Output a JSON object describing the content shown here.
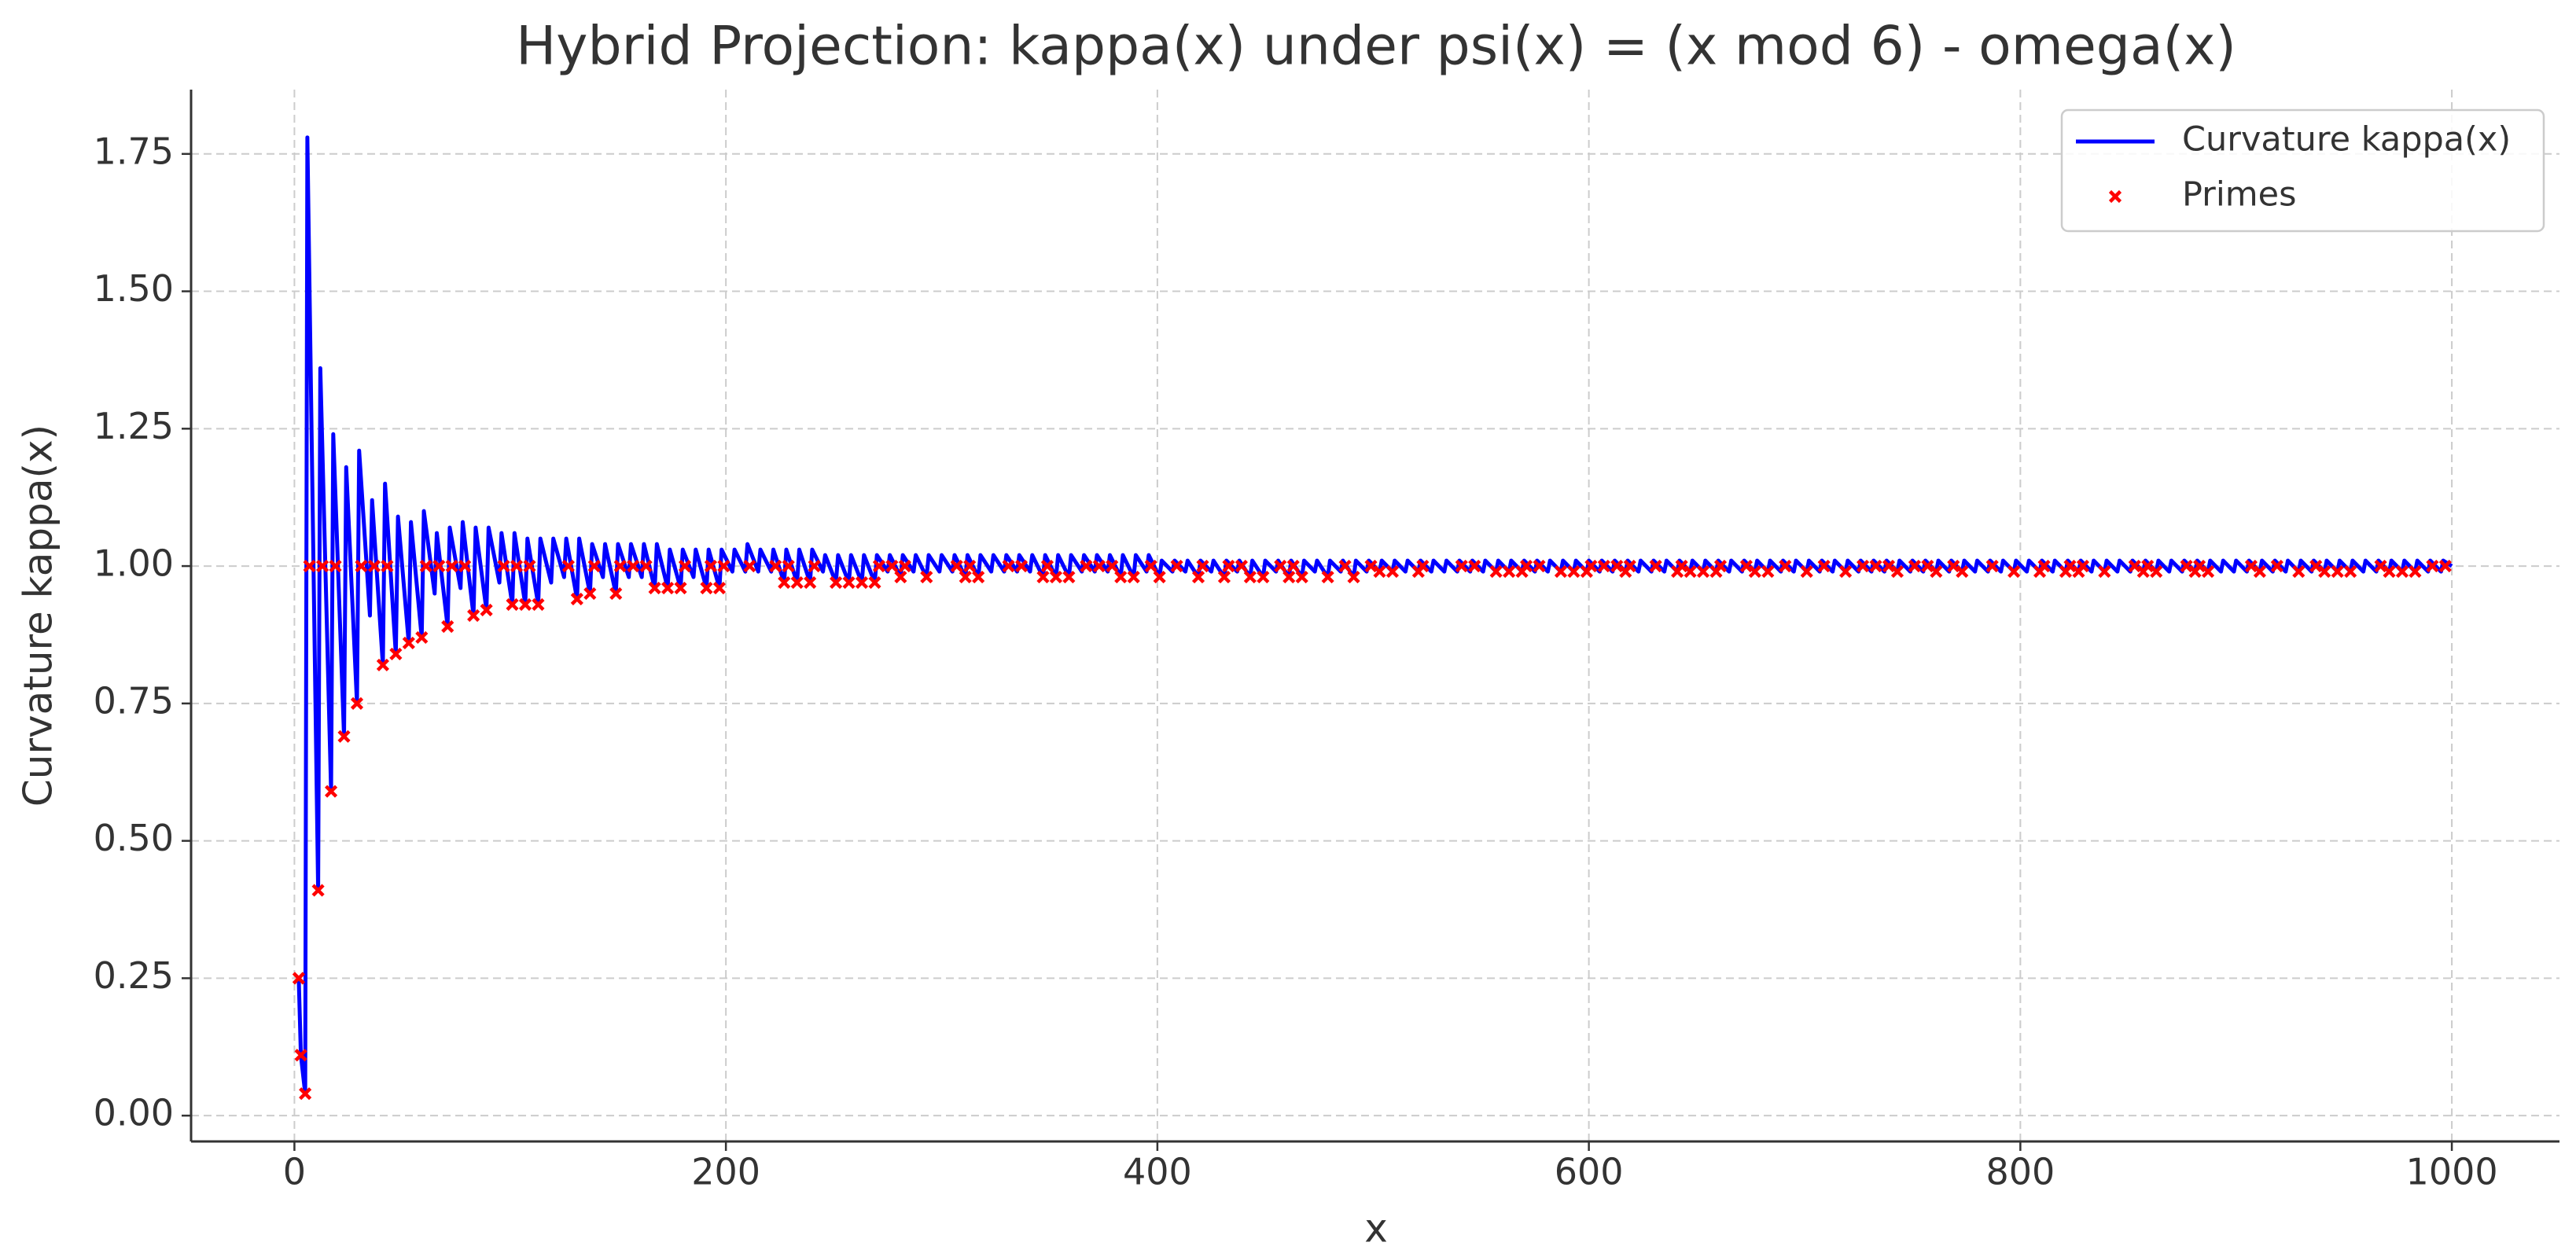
{
  "chart_data": {
    "type": "line",
    "title": "Hybrid Projection: kappa(x) under psi(x) = (x mod 6) - omega(x)",
    "xlabel": "x",
    "ylabel": "Curvature kappa(x)",
    "xlim": [
      -47.9,
      1049.9
    ],
    "ylim": [
      -0.047,
      1.867
    ],
    "xticks": [
      0,
      200,
      400,
      600,
      800,
      1000
    ],
    "yticks": [
      {
        "value": 0,
        "label": "0.00"
      },
      {
        "value": 0.25,
        "label": "0.25"
      },
      {
        "value": 0.5,
        "label": "0.50"
      },
      {
        "value": 0.75,
        "label": "0.75"
      },
      {
        "value": 1,
        "label": "1.00"
      },
      {
        "value": 1.25,
        "label": "1.25"
      },
      {
        "value": 1.5,
        "label": "1.50"
      },
      {
        "value": 1.75,
        "label": "1.75"
      }
    ],
    "grid": true,
    "legend": "upper right",
    "series": [
      {
        "name": "Curvature kappa(x)",
        "type": "line",
        "color": "#0000ff",
        "x": [
          2,
          3,
          5,
          6,
          11,
          12,
          17,
          18,
          23,
          24,
          29,
          30,
          35,
          36,
          41,
          42,
          47,
          48,
          53,
          54,
          59,
          60,
          65,
          66,
          71,
          72,
          77,
          78,
          83,
          84,
          89,
          90,
          95,
          96,
          101,
          102,
          107,
          108,
          113,
          114,
          119,
          120,
          125,
          126,
          131,
          132,
          137,
          138,
          143,
          144,
          149,
          150,
          155,
          156,
          161,
          162,
          167,
          168,
          173,
          174,
          179,
          180,
          185,
          186,
          191,
          192,
          197,
          198,
          203,
          204,
          209,
          210,
          215,
          216,
          221,
          222,
          227,
          228,
          233,
          234,
          239,
          240,
          245,
          246,
          251,
          252,
          257,
          258,
          263,
          264,
          269,
          270,
          275,
          276,
          281,
          282,
          287,
          288,
          293,
          294,
          299,
          300,
          305,
          306,
          311,
          312,
          317,
          318,
          323,
          324,
          329,
          330,
          335,
          336,
          341,
          342,
          347,
          348,
          353,
          354,
          359,
          360,
          365,
          366,
          371,
          372,
          377,
          378,
          383,
          384,
          389,
          390,
          395,
          396,
          401,
          402,
          407,
          408,
          413,
          414,
          419,
          420,
          425,
          426,
          431,
          432,
          437,
          438,
          443,
          444,
          449,
          450,
          455,
          456,
          461,
          462,
          467,
          468,
          473,
          474,
          479,
          480,
          485,
          486,
          491,
          492,
          497,
          498,
          503,
          504,
          509,
          510,
          515,
          516,
          521,
          522,
          527,
          528,
          533,
          534,
          539,
          540,
          545,
          546,
          551,
          552,
          557,
          558,
          563,
          564,
          569,
          570,
          575,
          576,
          581,
          582,
          587,
          588,
          593,
          594,
          599,
          600,
          605,
          606,
          611,
          612,
          617,
          618,
          623,
          624,
          629,
          630,
          635,
          636,
          641,
          642,
          647,
          648,
          653,
          654,
          659,
          660,
          665,
          666,
          671,
          672,
          677,
          678,
          683,
          684,
          689,
          690,
          695,
          696,
          701,
          702,
          707,
          708,
          713,
          714,
          719,
          720,
          725,
          726,
          731,
          732,
          737,
          738,
          743,
          744,
          749,
          750,
          755,
          756,
          761,
          762,
          767,
          768,
          773,
          774,
          779,
          780,
          785,
          786,
          791,
          792,
          797,
          798,
          803,
          804,
          809,
          810,
          815,
          816,
          821,
          822,
          827,
          828,
          833,
          834,
          839,
          840,
          845,
          846,
          851,
          852,
          857,
          858,
          863,
          864,
          869,
          870,
          875,
          876,
          881,
          882,
          887,
          888,
          893,
          894,
          899,
          900,
          905,
          906,
          911,
          912,
          917,
          918,
          923,
          924,
          929,
          930,
          935,
          936,
          941,
          942,
          947,
          948,
          953,
          954,
          959,
          960,
          965,
          966,
          971,
          972,
          977,
          978,
          983,
          984,
          989,
          990,
          995,
          996,
          1000
        ],
        "values": [
          0.25,
          0.11,
          0.04,
          1.78,
          0.41,
          1.36,
          0.59,
          1.24,
          0.69,
          1.18,
          0.75,
          1.21,
          0.91,
          1.12,
          0.82,
          1.15,
          0.84,
          1.09,
          0.86,
          1.08,
          0.87,
          1.1,
          0.95,
          1.06,
          0.89,
          1.07,
          0.96,
          1.08,
          0.91,
          1.07,
          0.92,
          1.07,
          0.97,
          1.06,
          0.93,
          1.06,
          0.93,
          1.05,
          0.93,
          1.05,
          0.97,
          1.05,
          0.98,
          1.05,
          0.94,
          1.05,
          0.95,
          1.04,
          0.98,
          1.04,
          0.95,
          1.04,
          0.98,
          1.04,
          0.98,
          1.04,
          0.96,
          1.04,
          0.96,
          1.03,
          0.96,
          1.03,
          0.98,
          1.03,
          0.96,
          1.03,
          0.96,
          1.03,
          0.99,
          1.03,
          0.99,
          1.04,
          0.99,
          1.03,
          0.99,
          1.03,
          0.97,
          1.03,
          0.97,
          1.03,
          0.97,
          1.03,
          0.99,
          1.02,
          0.97,
          1.02,
          0.97,
          1.02,
          0.97,
          1.02,
          0.97,
          1.02,
          0.99,
          1.02,
          0.98,
          1.02,
          0.99,
          1.02,
          0.98,
          1.02,
          0.99,
          1.02,
          0.99,
          1.02,
          0.98,
          1.02,
          0.98,
          1.02,
          0.99,
          1.02,
          0.99,
          1.02,
          0.99,
          1.02,
          0.99,
          1.02,
          0.98,
          1.02,
          0.98,
          1.02,
          0.98,
          1.02,
          0.99,
          1.02,
          0.99,
          1.02,
          0.99,
          1.02,
          0.98,
          1.02,
          0.98,
          1.02,
          0.99,
          1.02,
          0.98,
          1.01,
          0.99,
          1.01,
          0.99,
          1.01,
          0.98,
          1.01,
          0.99,
          1.01,
          0.98,
          1.01,
          0.99,
          1.01,
          0.98,
          1.01,
          0.98,
          1.01,
          0.99,
          1.01,
          0.98,
          1.01,
          0.98,
          1.01,
          0.99,
          1.01,
          0.98,
          1.01,
          0.99,
          1.01,
          0.98,
          1.01,
          0.99,
          1.01,
          0.99,
          1.01,
          0.99,
          1.01,
          0.99,
          1.01,
          0.99,
          1.01,
          0.99,
          1.01,
          0.99,
          1.01,
          0.99,
          1.01,
          0.99,
          1.01,
          0.99,
          1.01,
          0.99,
          1.01,
          0.99,
          1.01,
          0.99,
          1.01,
          0.99,
          1.01,
          0.99,
          1.01,
          0.99,
          1.01,
          0.99,
          1.01,
          0.99,
          1.01,
          0.99,
          1.01,
          0.99,
          1.01,
          0.99,
          1.01,
          0.99,
          1.01,
          0.99,
          1.01,
          0.99,
          1.01,
          0.99,
          1.01,
          0.99,
          1.01,
          0.99,
          1.01,
          0.99,
          1.01,
          0.99,
          1.01,
          0.99,
          1.01,
          0.99,
          1.01,
          0.99,
          1.01,
          0.99,
          1.01,
          0.99,
          1.01,
          0.99,
          1.01,
          0.99,
          1.01,
          0.99,
          1.01,
          0.99,
          1.01,
          0.99,
          1.01,
          0.99,
          1.01,
          0.99,
          1.01,
          0.99,
          1.01,
          0.99,
          1.01,
          0.99,
          1.01,
          0.99,
          1.01,
          0.99,
          1.01,
          0.99,
          1.01,
          0.99,
          1.01,
          0.99,
          1.01,
          0.99,
          1.01,
          0.99,
          1.01,
          0.99,
          1.01,
          0.99,
          1.01,
          0.99,
          1.01,
          0.99,
          1.01,
          0.99,
          1.01,
          0.99,
          1.01,
          0.99,
          1.01,
          0.99,
          1.01,
          0.99,
          1.01,
          0.99,
          1.01,
          0.99,
          1.01,
          0.99,
          1.01,
          0.99,
          1.01,
          0.99,
          1.01,
          0.99,
          1.01,
          0.99,
          1.01,
          0.99,
          1.01,
          0.99,
          1.01,
          0.99,
          1.01,
          0.99,
          1.01,
          0.99,
          1.01,
          0.99,
          1.01,
          0.99,
          1.01,
          0.99,
          1.01,
          0.99,
          1.01,
          0.99,
          1.01,
          0.99,
          1.01,
          0.99,
          1.01,
          0.99,
          1.01,
          0.99,
          1.01,
          0.99,
          1.01,
          0.99,
          1.01,
          0.99,
          1.01,
          1.0
        ]
      },
      {
        "name": "Primes",
        "type": "scatter",
        "color": "#ff0000",
        "x": [
          2,
          3,
          5,
          7,
          11,
          13,
          17,
          19,
          23,
          29,
          31,
          37,
          41,
          43,
          47,
          53,
          59,
          61,
          67,
          71,
          73,
          79,
          83,
          89,
          97,
          101,
          103,
          107,
          109,
          113,
          127,
          131,
          137,
          139,
          149,
          151,
          157,
          163,
          167,
          173,
          179,
          181,
          191,
          193,
          197,
          199,
          211,
          223,
          227,
          229,
          233,
          239,
          241,
          251,
          257,
          263,
          269,
          271,
          277,
          281,
          283,
          293,
          307,
          311,
          313,
          317,
          331,
          337,
          347,
          349,
          353,
          359,
          367,
          373,
          379,
          383,
          389,
          397,
          401,
          409,
          419,
          421,
          431,
          433,
          439,
          443,
          449,
          457,
          461,
          463,
          467,
          479,
          487,
          491,
          499,
          503,
          509,
          521,
          523,
          541,
          547,
          557,
          563,
          569,
          571,
          577,
          587,
          593,
          599,
          601,
          607,
          613,
          617,
          619,
          631,
          641,
          643,
          647,
          653,
          659,
          661,
          673,
          677,
          683,
          691,
          701,
          709,
          719,
          727,
          733,
          739,
          743,
          751,
          757,
          761,
          769,
          773,
          787,
          797,
          809,
          811,
          821,
          823,
          827,
          829,
          839,
          853,
          857,
          859,
          863,
          877,
          881,
          883,
          887,
          907,
          911,
          919,
          929,
          937,
          941,
          947,
          953,
          967,
          971,
          977,
          983,
          991,
          997
        ],
        "values": [
          0.25,
          0.11,
          0.04,
          1,
          0.41,
          1,
          0.59,
          1,
          0.69,
          0.75,
          1,
          1,
          0.82,
          1,
          0.84,
          0.86,
          0.87,
          1,
          1,
          0.89,
          1,
          1,
          0.91,
          0.92,
          1,
          0.93,
          1,
          0.93,
          1,
          0.93,
          1,
          0.94,
          0.95,
          1,
          0.95,
          1,
          1,
          1,
          0.96,
          0.96,
          0.96,
          1,
          0.96,
          1,
          0.96,
          1,
          1,
          1,
          0.97,
          1,
          0.97,
          0.97,
          1,
          0.97,
          0.97,
          0.97,
          0.97,
          1,
          1,
          0.98,
          1,
          0.98,
          1,
          0.98,
          1,
          0.98,
          1,
          1,
          0.98,
          1,
          0.98,
          0.98,
          1,
          1,
          1,
          0.98,
          0.98,
          1,
          0.98,
          1,
          0.98,
          1,
          0.98,
          1,
          1,
          0.98,
          0.98,
          1,
          0.98,
          1,
          0.98,
          0.98,
          1,
          0.98,
          1,
          0.99,
          0.99,
          0.99,
          1,
          1,
          1,
          0.99,
          0.99,
          0.99,
          1,
          1,
          0.99,
          0.99,
          0.99,
          1,
          1,
          1,
          0.99,
          1,
          1,
          0.99,
          1,
          0.99,
          0.99,
          0.99,
          1,
          1,
          0.99,
          0.99,
          1,
          0.99,
          1,
          0.99,
          1,
          1,
          1,
          0.99,
          1,
          1,
          0.99,
          1,
          0.99,
          1,
          0.99,
          0.99,
          1,
          0.99,
          1,
          0.99,
          1,
          0.99,
          1,
          0.99,
          1,
          0.99,
          1,
          0.99,
          1,
          0.99,
          1,
          0.99,
          1,
          0.99,
          1,
          0.99,
          0.99,
          0.99,
          1,
          0.99,
          0.99,
          0.99,
          1,
          1
        ]
      }
    ]
  }
}
